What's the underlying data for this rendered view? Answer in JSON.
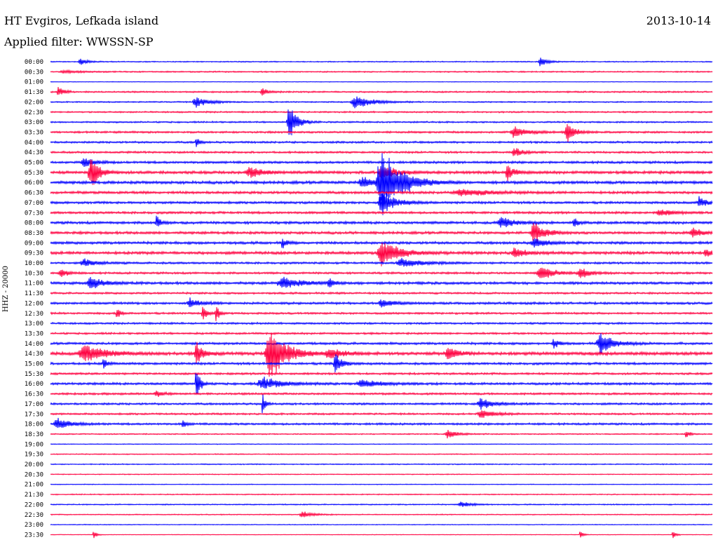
{
  "header": {
    "station": "HT Evgiros, Lefkada island",
    "date": "2013-10-14",
    "filter": "Applied filter: WWSSN-SP"
  },
  "chart_data": {
    "type": "line",
    "title": "HT Evgiros, Lefkada island",
    "subtitle": "Applied filter: WWSSN-SP",
    "ylabel": "HHZ - 20000",
    "xlabel": "",
    "grid": false,
    "row_times": [
      "00:00",
      "00:30",
      "01:00",
      "01:30",
      "02:00",
      "02:30",
      "03:00",
      "03:30",
      "04:00",
      "04:30",
      "05:00",
      "05:30",
      "06:00",
      "06:30",
      "07:00",
      "07:30",
      "08:00",
      "08:30",
      "09:00",
      "09:30",
      "10:00",
      "10:30",
      "11:00",
      "11:30",
      "12:00",
      "12:30",
      "13:00",
      "13:30",
      "14:00",
      "14:30",
      "15:00",
      "15:30",
      "16:00",
      "16:30",
      "17:00",
      "17:30",
      "18:00",
      "18:30",
      "19:00",
      "19:30",
      "20:00",
      "20:30",
      "21:00",
      "21:30",
      "22:00",
      "22:30",
      "23:00",
      "23:30"
    ],
    "colors": [
      "#0000ff",
      "#ff0040"
    ],
    "row_noise": [
      0.8,
      1.0,
      0.5,
      1.2,
      1.0,
      1.2,
      1.2,
      1.5,
      1.5,
      1.5,
      1.8,
      2.2,
      2.2,
      2.0,
      1.8,
      1.8,
      2.0,
      2.0,
      2.0,
      2.2,
      1.6,
      1.6,
      2.0,
      1.5,
      1.8,
      1.5,
      1.5,
      1.5,
      1.8,
      2.4,
      1.8,
      1.6,
      1.8,
      1.6,
      1.6,
      1.4,
      1.6,
      0.9,
      0.6,
      0.8,
      0.8,
      0.7,
      0.6,
      0.8,
      0.9,
      0.8,
      0.6,
      0.5
    ],
    "events": [
      {
        "row": 0,
        "pos": 0.045,
        "amp": 5,
        "dur": 0.012
      },
      {
        "row": 0,
        "pos": 0.74,
        "amp": 7,
        "dur": 0.012
      },
      {
        "row": 1,
        "pos": 0.02,
        "amp": 2,
        "dur": 0.03
      },
      {
        "row": 3,
        "pos": 0.012,
        "amp": 10,
        "dur": 0.008
      },
      {
        "row": 3,
        "pos": 0.32,
        "amp": 7,
        "dur": 0.01
      },
      {
        "row": 4,
        "pos": 0.22,
        "amp": 9,
        "dur": 0.02
      },
      {
        "row": 4,
        "pos": 0.46,
        "amp": 11,
        "dur": 0.025
      },
      {
        "row": 6,
        "pos": 0.36,
        "amp": 30,
        "dur": 0.012
      },
      {
        "row": 7,
        "pos": 0.7,
        "amp": 10,
        "dur": 0.02
      },
      {
        "row": 7,
        "pos": 0.78,
        "amp": 18,
        "dur": 0.012
      },
      {
        "row": 8,
        "pos": 0.22,
        "amp": 10,
        "dur": 0.005
      },
      {
        "row": 9,
        "pos": 0.7,
        "amp": 9,
        "dur": 0.012
      },
      {
        "row": 10,
        "pos": 0.05,
        "amp": 8,
        "dur": 0.015
      },
      {
        "row": 11,
        "pos": 0.06,
        "amp": 30,
        "dur": 0.012
      },
      {
        "row": 11,
        "pos": 0.3,
        "amp": 9,
        "dur": 0.02
      },
      {
        "row": 11,
        "pos": 0.5,
        "amp": 12,
        "dur": 0.02
      },
      {
        "row": 11,
        "pos": 0.69,
        "amp": 14,
        "dur": 0.01
      },
      {
        "row": 12,
        "pos": 0.5,
        "amp": 55,
        "dur": 0.03
      },
      {
        "row": 12,
        "pos": 0.47,
        "amp": 9,
        "dur": 0.02
      },
      {
        "row": 13,
        "pos": 0.62,
        "amp": 6,
        "dur": 0.04
      },
      {
        "row": 14,
        "pos": 0.5,
        "amp": 20,
        "dur": 0.02
      },
      {
        "row": 14,
        "pos": 0.98,
        "amp": 10,
        "dur": 0.01
      },
      {
        "row": 15,
        "pos": 0.92,
        "amp": 6,
        "dur": 0.02
      },
      {
        "row": 16,
        "pos": 0.16,
        "amp": 15,
        "dur": 0.005
      },
      {
        "row": 16,
        "pos": 0.68,
        "amp": 9,
        "dur": 0.02
      },
      {
        "row": 16,
        "pos": 0.79,
        "amp": 9,
        "dur": 0.006
      },
      {
        "row": 17,
        "pos": 0.73,
        "amp": 22,
        "dur": 0.015
      },
      {
        "row": 17,
        "pos": 0.97,
        "amp": 8,
        "dur": 0.015
      },
      {
        "row": 18,
        "pos": 0.35,
        "amp": 10,
        "dur": 0.006
      },
      {
        "row": 18,
        "pos": 0.73,
        "amp": 8,
        "dur": 0.02
      },
      {
        "row": 19,
        "pos": 0.5,
        "amp": 22,
        "dur": 0.025
      },
      {
        "row": 19,
        "pos": 0.7,
        "amp": 9,
        "dur": 0.015
      },
      {
        "row": 19,
        "pos": 0.99,
        "amp": 7,
        "dur": 0.01
      },
      {
        "row": 20,
        "pos": 0.05,
        "amp": 6,
        "dur": 0.02
      },
      {
        "row": 20,
        "pos": 0.53,
        "amp": 8,
        "dur": 0.03
      },
      {
        "row": 21,
        "pos": 0.015,
        "amp": 9,
        "dur": 0.01
      },
      {
        "row": 21,
        "pos": 0.74,
        "amp": 12,
        "dur": 0.02
      },
      {
        "row": 21,
        "pos": 0.8,
        "amp": 9,
        "dur": 0.015
      },
      {
        "row": 22,
        "pos": 0.06,
        "amp": 10,
        "dur": 0.02
      },
      {
        "row": 22,
        "pos": 0.35,
        "amp": 9,
        "dur": 0.03
      },
      {
        "row": 22,
        "pos": 0.42,
        "amp": 9,
        "dur": 0.008
      },
      {
        "row": 24,
        "pos": 0.21,
        "amp": 8,
        "dur": 0.015
      },
      {
        "row": 24,
        "pos": 0.5,
        "amp": 6,
        "dur": 0.02
      },
      {
        "row": 25,
        "pos": 0.1,
        "amp": 12,
        "dur": 0.005
      },
      {
        "row": 25,
        "pos": 0.23,
        "amp": 18,
        "dur": 0.005
      },
      {
        "row": 25,
        "pos": 0.25,
        "amp": 14,
        "dur": 0.005
      },
      {
        "row": 28,
        "pos": 0.76,
        "amp": 8,
        "dur": 0.008
      },
      {
        "row": 28,
        "pos": 0.83,
        "amp": 18,
        "dur": 0.02
      },
      {
        "row": 29,
        "pos": 0.05,
        "amp": 16,
        "dur": 0.03
      },
      {
        "row": 29,
        "pos": 0.22,
        "amp": 22,
        "dur": 0.01
      },
      {
        "row": 29,
        "pos": 0.33,
        "amp": 45,
        "dur": 0.025
      },
      {
        "row": 29,
        "pos": 0.42,
        "amp": 10,
        "dur": 0.02
      },
      {
        "row": 29,
        "pos": 0.6,
        "amp": 16,
        "dur": 0.012
      },
      {
        "row": 30,
        "pos": 0.08,
        "amp": 12,
        "dur": 0.005
      },
      {
        "row": 30,
        "pos": 0.43,
        "amp": 18,
        "dur": 0.01
      },
      {
        "row": 32,
        "pos": 0.22,
        "amp": 30,
        "dur": 0.006
      },
      {
        "row": 32,
        "pos": 0.32,
        "amp": 10,
        "dur": 0.03
      },
      {
        "row": 32,
        "pos": 0.47,
        "amp": 6,
        "dur": 0.03
      },
      {
        "row": 33,
        "pos": 0.16,
        "amp": 6,
        "dur": 0.01
      },
      {
        "row": 34,
        "pos": 0.32,
        "amp": 22,
        "dur": 0.004
      },
      {
        "row": 34,
        "pos": 0.65,
        "amp": 10,
        "dur": 0.02
      },
      {
        "row": 35,
        "pos": 0.65,
        "amp": 8,
        "dur": 0.02
      },
      {
        "row": 36,
        "pos": 0.01,
        "amp": 9,
        "dur": 0.02
      },
      {
        "row": 36,
        "pos": 0.2,
        "amp": 8,
        "dur": 0.005
      },
      {
        "row": 37,
        "pos": 0.6,
        "amp": 7,
        "dur": 0.015
      },
      {
        "row": 37,
        "pos": 0.96,
        "amp": 7,
        "dur": 0.006
      },
      {
        "row": 44,
        "pos": 0.62,
        "amp": 5,
        "dur": 0.015
      },
      {
        "row": 45,
        "pos": 0.38,
        "amp": 6,
        "dur": 0.015
      },
      {
        "row": 47,
        "pos": 0.065,
        "amp": 8,
        "dur": 0.004
      },
      {
        "row": 47,
        "pos": 0.8,
        "amp": 9,
        "dur": 0.004
      },
      {
        "row": 47,
        "pos": 0.94,
        "amp": 10,
        "dur": 0.004
      }
    ]
  }
}
